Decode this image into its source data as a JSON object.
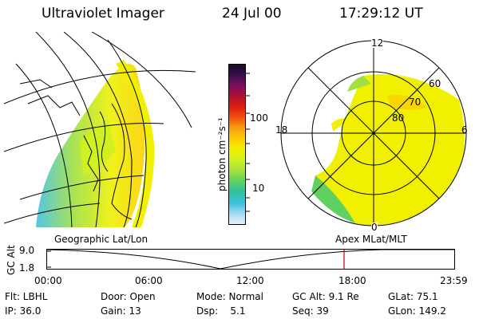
{
  "header": {
    "instrument": "Ultraviolet Imager",
    "date": "24 Jul 00",
    "time": "17:29:12 UT"
  },
  "colorbar": {
    "unit_label": "photon cm⁻²s⁻¹",
    "tick_100": "100",
    "tick_10": "10",
    "colors_top_to_bottom": [
      "#1a0a2a",
      "#3a1050",
      "#7a1060",
      "#b01030",
      "#e02010",
      "#f05010",
      "#f8a010",
      "#fbd000",
      "#f0f000",
      "#d0f020",
      "#a0e040",
      "#60d060",
      "#30c0a0",
      "#40c0e0",
      "#a0d8f0",
      "#e8f0f8"
    ]
  },
  "geo_panel": {
    "label": "Geographic Lat/Lon"
  },
  "polar_panel": {
    "label": "Apex MLat/MLT",
    "mlt_12": "12",
    "mlt_18": "18",
    "mlt_6": "6",
    "mlt_0": "0",
    "lat_60": "60",
    "lat_70": "70",
    "lat_80": "80"
  },
  "altitude_plot": {
    "axis_label": "GC Alt",
    "y_top": "9.0",
    "y_bottom": "1.8",
    "x_ticks": [
      "00:00",
      "06:00",
      "12:00",
      "18:00",
      "23:59"
    ],
    "marker_color": "#cc0000"
  },
  "info": {
    "row1": {
      "flt": "Flt: LBHL",
      "door": "Door: Open",
      "mode": "Mode: Normal",
      "gcalt": "GC Alt: 9.1 Re",
      "glat": "GLat: 75.1"
    },
    "row2": {
      "ip": "IP: 36.0",
      "gain": "Gain: 13",
      "dsp": "Dsp:    5.1",
      "seq": "Seq: 39",
      "glon": "GLon: 149.2"
    }
  }
}
